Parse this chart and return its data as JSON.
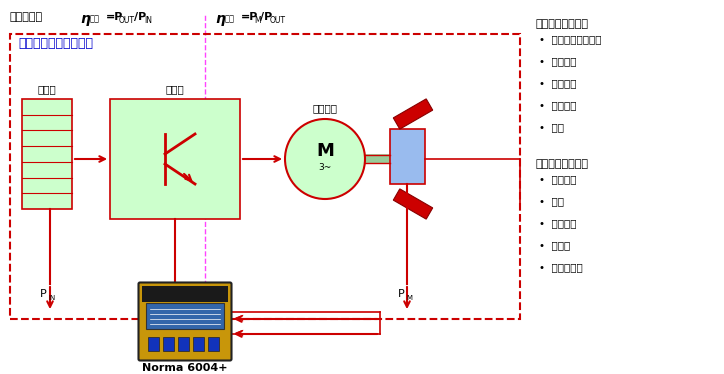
{
  "bg_color": "#ffffff",
  "title_top": "效率检测：",
  "eta_inv_label": "逆变",
  "eta_mot_label": "电机",
  "system_title": "电动汽车驱动控制系统",
  "battery_label": "电池组",
  "controller_label": "控制器",
  "motor_drive_label": "驱动电机",
  "device_label": "Norma 6004+",
  "input_params_title": "电机的输入参数：",
  "input_params": [
    "输入功率（基波）",
    "谐波含量",
    "功率因数",
    "浪涌电流",
    "频率"
  ],
  "output_params_title": "电机的输出参数：",
  "output_params": [
    "输出扭矩",
    "转速",
    "机械功率",
    "转差率",
    "电机的效率"
  ],
  "dashed_line_color": "#ff44ff",
  "red_color": "#cc0000",
  "green_fill": "#ccffcc",
  "blue_fill": "#99bbee",
  "system_text_color": "#0000cc",
  "magnet_color": "#cc0000",
  "shaft_color": "#99cc99",
  "fig_w": 7.24,
  "fig_h": 3.74,
  "dpi": 100
}
